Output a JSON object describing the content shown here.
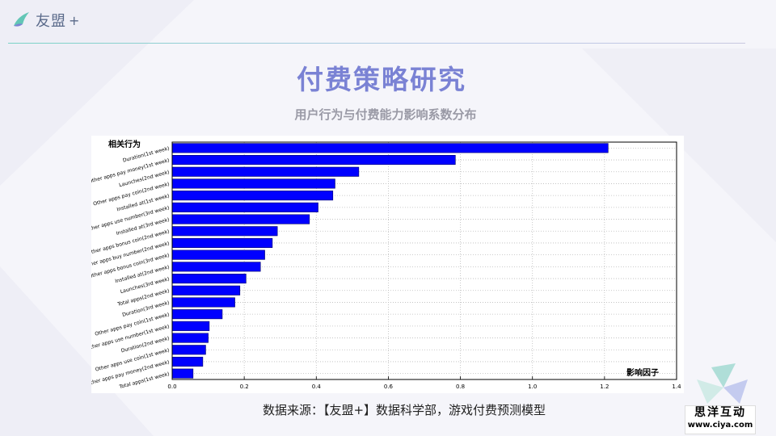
{
  "brand": {
    "name": "友盟",
    "plus": "+"
  },
  "header": {
    "title": "付费策略研究",
    "subtitle": "用户行为与付费能力影响系数分布"
  },
  "chart_data": {
    "type": "bar",
    "orientation": "horizontal",
    "title": "",
    "ylabel": "相关行为",
    "xlabel": "影响因子",
    "xlim": [
      0,
      1.4
    ],
    "xticks": [
      "0.0",
      "0.2",
      "0.4",
      "0.6",
      "0.8",
      "1.0",
      "1.2",
      "1.4"
    ],
    "grid": true,
    "bar_color": "#0000ff",
    "categories": [
      "Duration(1st week)",
      "Other apps pay money(1st week)",
      "Launches(2nd week)",
      "Other apps pay coin(2nd week)",
      "Installed at(1st week)",
      "Other apps use number(3rd week)",
      "Installed at(3rd week)",
      "Other apps bonus coin(2nd week)",
      "Other apps buy number(2nd week)",
      "Other apps bonus coin(3rd week)",
      "Installed at(2nd week)",
      "Launches(3rd week)",
      "Total apps(2nd week)",
      "Duration(3rd week)",
      "Other apps pay coin(1st week)",
      "Other apps use number(1st week)",
      "Duration(2nd week)",
      "Other apps use coin(1st week)",
      "Other apps pay money(2nd week)",
      "Total apps(1st week)"
    ],
    "values": [
      1.21,
      0.786,
      0.518,
      0.452,
      0.446,
      0.405,
      0.381,
      0.292,
      0.278,
      0.257,
      0.245,
      0.205,
      0.188,
      0.174,
      0.139,
      0.103,
      0.1,
      0.093,
      0.085,
      0.058
    ]
  },
  "footer": {
    "source": "数据来源：【友盟+】数据科学部，游戏付费预测模型",
    "watermark_top": "思洋互动",
    "watermark_bottom": "www.ciya.com"
  }
}
